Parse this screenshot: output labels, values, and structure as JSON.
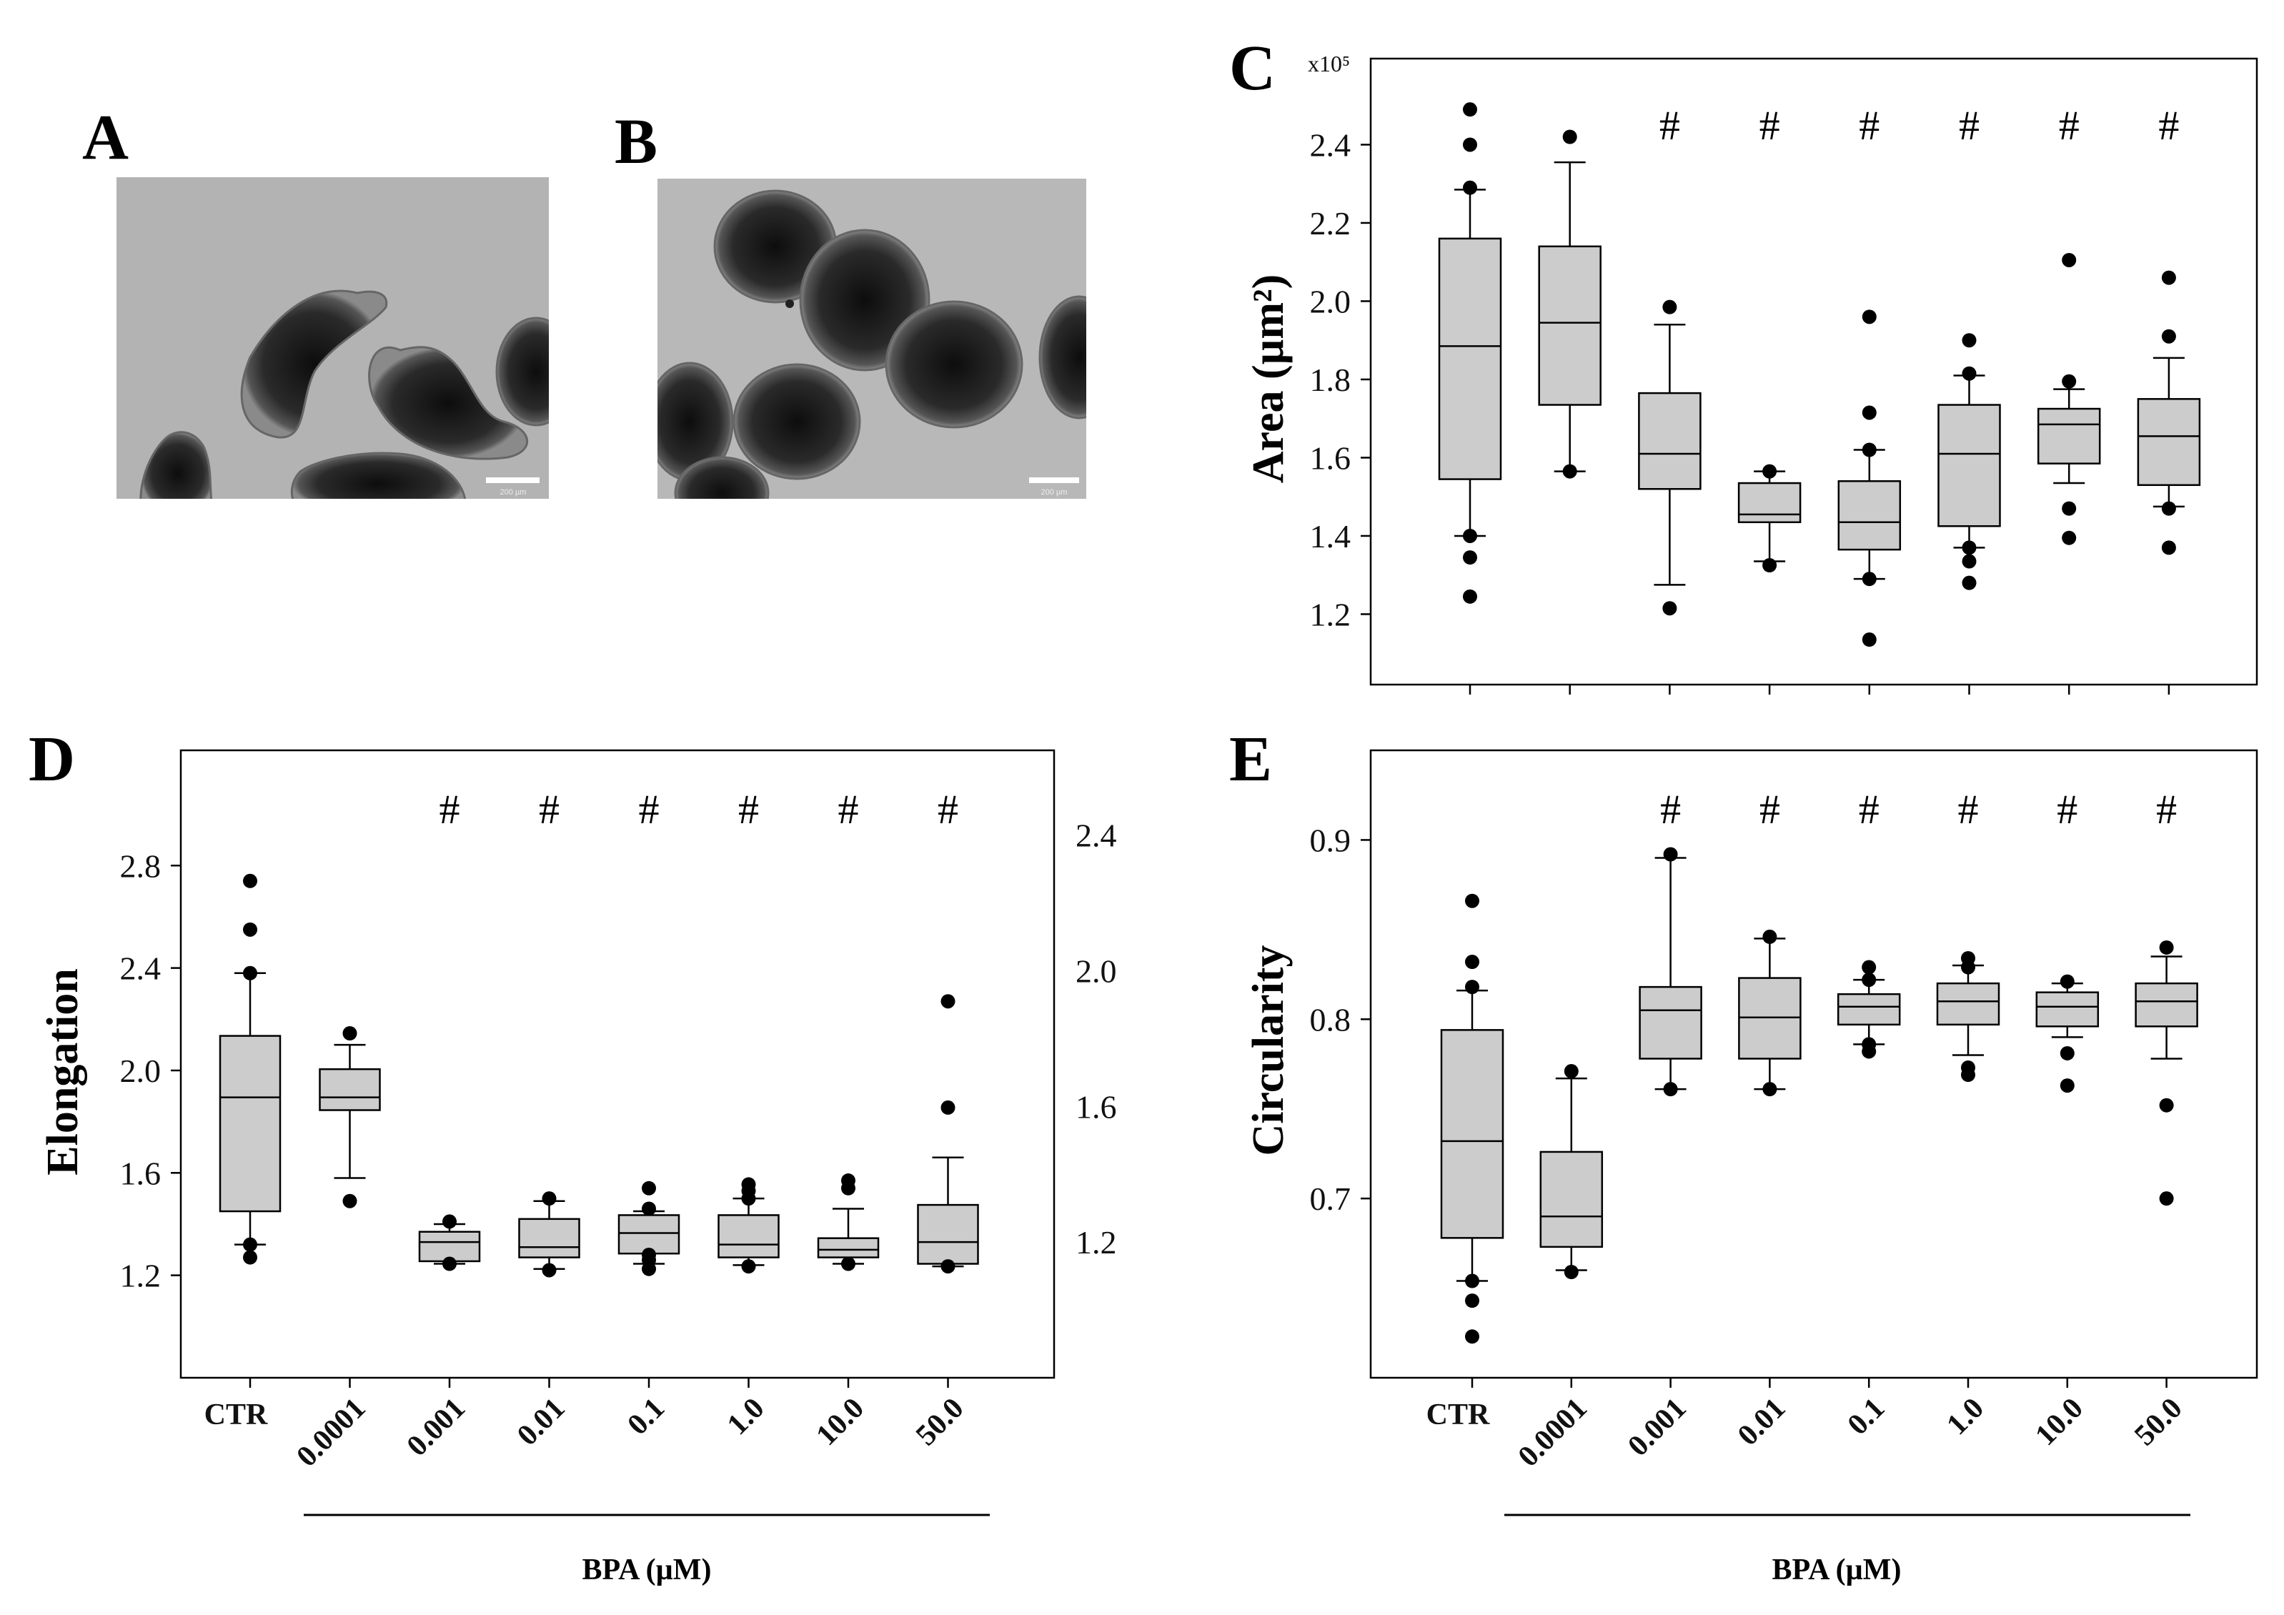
{
  "panels": {
    "A": {
      "letter": "A",
      "scale_text": "200 µm"
    },
    "B": {
      "letter": "B",
      "scale_text": "200 µm"
    }
  },
  "x_axis": {
    "categories": [
      "CTR",
      "0.0001",
      "0.001",
      "0.01",
      "0.1",
      "1.0",
      "10.0",
      "50.0"
    ],
    "title": "BPA (µM)"
  },
  "chart_data": [
    {
      "panel": "C",
      "type": "box",
      "ylabel": "Area (µm²)",
      "y_multiplier": "x10⁵",
      "ylim": [
        1.02,
        2.62
      ],
      "yticks": [
        1.2,
        1.4,
        1.6,
        1.8,
        2.0,
        2.2,
        2.4
      ],
      "ytick_labels": [
        "1.2",
        "1.4",
        "1.6",
        "1.8",
        "2.0",
        "2.2",
        "2.4"
      ],
      "significance": [
        "",
        "",
        "#",
        "#",
        "#",
        "#",
        "#",
        "#"
      ],
      "boxes": [
        {
          "q1": 1.545,
          "median": 1.885,
          "q3": 2.16,
          "wlo": 1.4,
          "whi": 2.285,
          "outliers": [
            2.49,
            2.4,
            2.29,
            1.4,
            1.345,
            1.245
          ]
        },
        {
          "q1": 1.735,
          "median": 1.945,
          "q3": 2.14,
          "wlo": 1.565,
          "whi": 2.355,
          "outliers": [
            2.42,
            1.565
          ]
        },
        {
          "q1": 1.52,
          "median": 1.61,
          "q3": 1.765,
          "wlo": 1.275,
          "whi": 1.94,
          "outliers": [
            1.985,
            1.215
          ]
        },
        {
          "q1": 1.435,
          "median": 1.455,
          "q3": 1.535,
          "wlo": 1.335,
          "whi": 1.565,
          "outliers": [
            1.565,
            1.325
          ]
        },
        {
          "q1": 1.365,
          "median": 1.435,
          "q3": 1.54,
          "wlo": 1.29,
          "whi": 1.62,
          "outliers": [
            1.96,
            1.715,
            1.62,
            1.29,
            1.135
          ]
        },
        {
          "q1": 1.425,
          "median": 1.61,
          "q3": 1.735,
          "wlo": 1.37,
          "whi": 1.81,
          "outliers": [
            1.9,
            1.815,
            1.37,
            1.335,
            1.28
          ]
        },
        {
          "q1": 1.585,
          "median": 1.685,
          "q3": 1.725,
          "wlo": 1.535,
          "whi": 1.775,
          "outliers": [
            2.105,
            1.795,
            1.47,
            1.395
          ]
        },
        {
          "q1": 1.53,
          "median": 1.655,
          "q3": 1.75,
          "wlo": 1.475,
          "whi": 1.855,
          "outliers": [
            2.06,
            1.91,
            1.47,
            1.37
          ]
        }
      ]
    },
    {
      "panel": "D",
      "type": "box",
      "ylabel": "Elongation",
      "ylim": [
        0.8,
        3.25
      ],
      "yticks": [
        1.2,
        1.6,
        2.0,
        2.4,
        2.8
      ],
      "ytick_labels": [
        "1.2",
        "1.6",
        "2.0",
        "2.4",
        "2.8"
      ],
      "right_tick_labels": [
        "1.2",
        "1.6",
        "2.0",
        "2.4"
      ],
      "significance": [
        "",
        "",
        "#",
        "#",
        "#",
        "#",
        "#",
        "#"
      ],
      "boxes": [
        {
          "q1": 1.45,
          "median": 1.895,
          "q3": 2.135,
          "wlo": 1.32,
          "whi": 2.38,
          "outliers": [
            2.74,
            2.55,
            2.38,
            1.32,
            1.27
          ]
        },
        {
          "q1": 1.845,
          "median": 1.895,
          "q3": 2.005,
          "wlo": 1.58,
          "whi": 2.1,
          "outliers": [
            2.145,
            1.49
          ]
        },
        {
          "q1": 1.255,
          "median": 1.33,
          "q3": 1.37,
          "wlo": 1.245,
          "whi": 1.4,
          "outliers": [
            1.41,
            1.245
          ]
        },
        {
          "q1": 1.27,
          "median": 1.31,
          "q3": 1.42,
          "wlo": 1.225,
          "whi": 1.49,
          "outliers": [
            1.5,
            1.22
          ]
        },
        {
          "q1": 1.285,
          "median": 1.365,
          "q3": 1.435,
          "wlo": 1.245,
          "whi": 1.45,
          "outliers": [
            1.54,
            1.46,
            1.28,
            1.26,
            1.225
          ]
        },
        {
          "q1": 1.27,
          "median": 1.32,
          "q3": 1.435,
          "wlo": 1.24,
          "whi": 1.5,
          "outliers": [
            1.555,
            1.53,
            1.5,
            1.235
          ]
        },
        {
          "q1": 1.27,
          "median": 1.3,
          "q3": 1.345,
          "wlo": 1.245,
          "whi": 1.46,
          "outliers": [
            1.57,
            1.54,
            1.245
          ]
        },
        {
          "q1": 1.245,
          "median": 1.33,
          "q3": 1.475,
          "wlo": 1.235,
          "whi": 1.66,
          "outliers": [
            2.27,
            1.855,
            1.235
          ]
        }
      ]
    },
    {
      "panel": "E",
      "type": "box",
      "ylabel": "Circularity",
      "ylim": [
        0.6,
        0.95
      ],
      "yticks": [
        0.7,
        0.8,
        0.9
      ],
      "ytick_labels": [
        "0.7",
        "0.8",
        "0.9"
      ],
      "significance": [
        "",
        "",
        "#",
        "#",
        "#",
        "#",
        "#",
        "#"
      ],
      "boxes": [
        {
          "q1": 0.678,
          "median": 0.732,
          "q3": 0.794,
          "wlo": 0.654,
          "whi": 0.816,
          "outliers": [
            0.866,
            0.832,
            0.818,
            0.654,
            0.643,
            0.623
          ]
        },
        {
          "q1": 0.673,
          "median": 0.69,
          "q3": 0.726,
          "wlo": 0.66,
          "whi": 0.767,
          "outliers": [
            0.771,
            0.659
          ]
        },
        {
          "q1": 0.778,
          "median": 0.805,
          "q3": 0.818,
          "wlo": 0.761,
          "whi": 0.89,
          "outliers": [
            0.892,
            0.761
          ]
        },
        {
          "q1": 0.778,
          "median": 0.801,
          "q3": 0.823,
          "wlo": 0.761,
          "whi": 0.845,
          "outliers": [
            0.846,
            0.761
          ]
        },
        {
          "q1": 0.797,
          "median": 0.807,
          "q3": 0.814,
          "wlo": 0.786,
          "whi": 0.822,
          "outliers": [
            0.829,
            0.822,
            0.786,
            0.782
          ]
        },
        {
          "q1": 0.797,
          "median": 0.81,
          "q3": 0.82,
          "wlo": 0.78,
          "whi": 0.83,
          "outliers": [
            0.834,
            0.829,
            0.773,
            0.769
          ]
        },
        {
          "q1": 0.796,
          "median": 0.807,
          "q3": 0.815,
          "wlo": 0.79,
          "whi": 0.82,
          "outliers": [
            0.821,
            0.781,
            0.763
          ]
        },
        {
          "q1": 0.796,
          "median": 0.81,
          "q3": 0.82,
          "wlo": 0.778,
          "whi": 0.835,
          "outliers": [
            0.84,
            0.752,
            0.7
          ]
        }
      ]
    }
  ]
}
